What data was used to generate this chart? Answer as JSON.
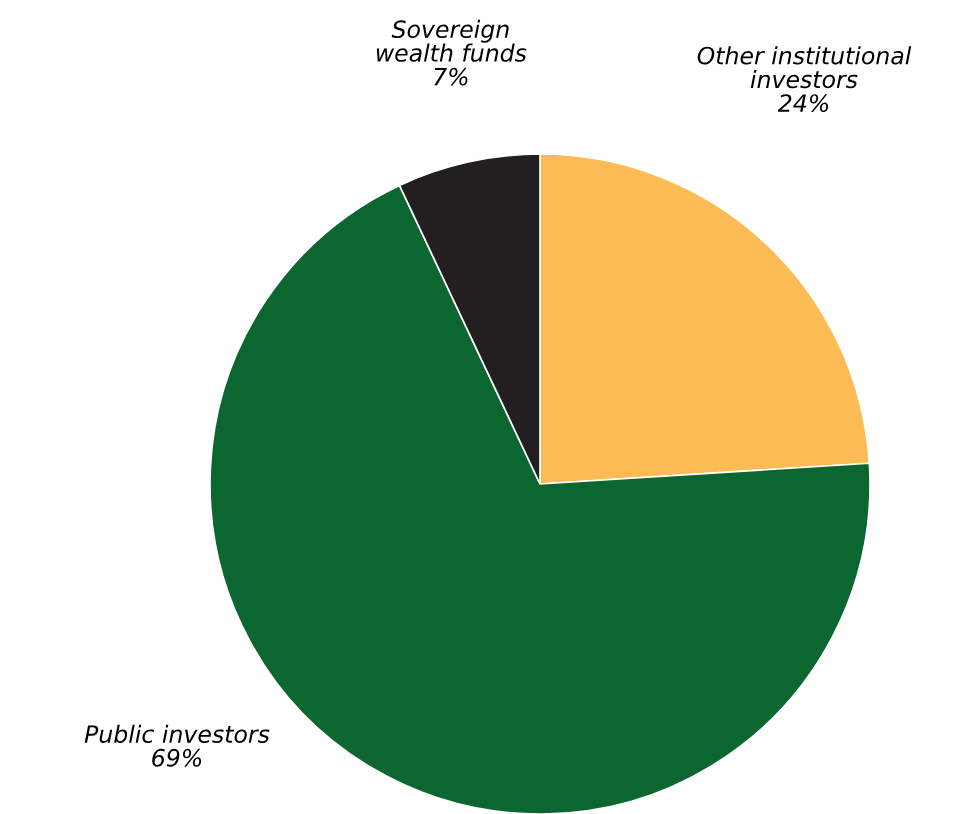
{
  "chart_data": {
    "type": "pie",
    "categories": [
      "Other institutional investors",
      "Public investors",
      "Sovereign wealth funds"
    ],
    "values": [
      24,
      69,
      7
    ],
    "colors": [
      "#fdbb55",
      "#0b6630",
      "#231f20"
    ],
    "value_labels": [
      "24%",
      "69%",
      "7%"
    ]
  }
}
